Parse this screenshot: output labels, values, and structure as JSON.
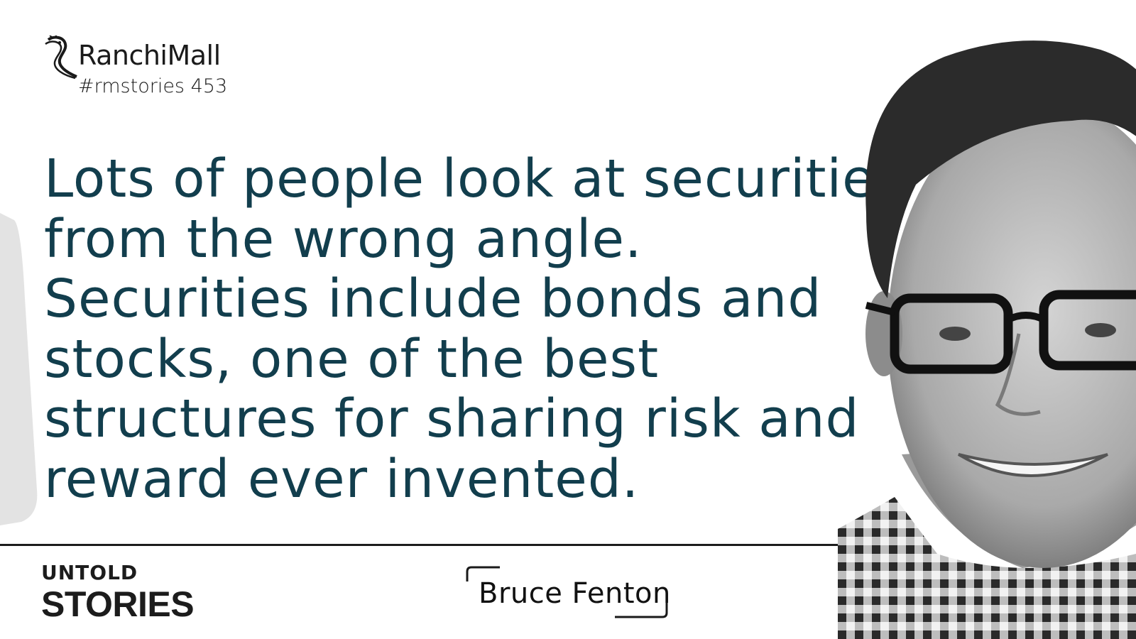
{
  "header": {
    "brand": "RanchiMall",
    "tag": "#rmstories 453"
  },
  "quote": {
    "text": "Lots of people look at securities from the wrong angle. Securities include bonds and stocks, one of the best structures for sharing risk and reward ever invented."
  },
  "footer": {
    "series_top": "UNTOLD",
    "series_bottom": "STORIES",
    "author": "Bruce Fenton"
  },
  "colors": {
    "quote_text": "#123e4d",
    "divider": "#1c1c1c",
    "left_shape": "#e3e3e3"
  },
  "icons": [
    "seahorse-logo-icon",
    "bracket-frame-icon"
  ]
}
